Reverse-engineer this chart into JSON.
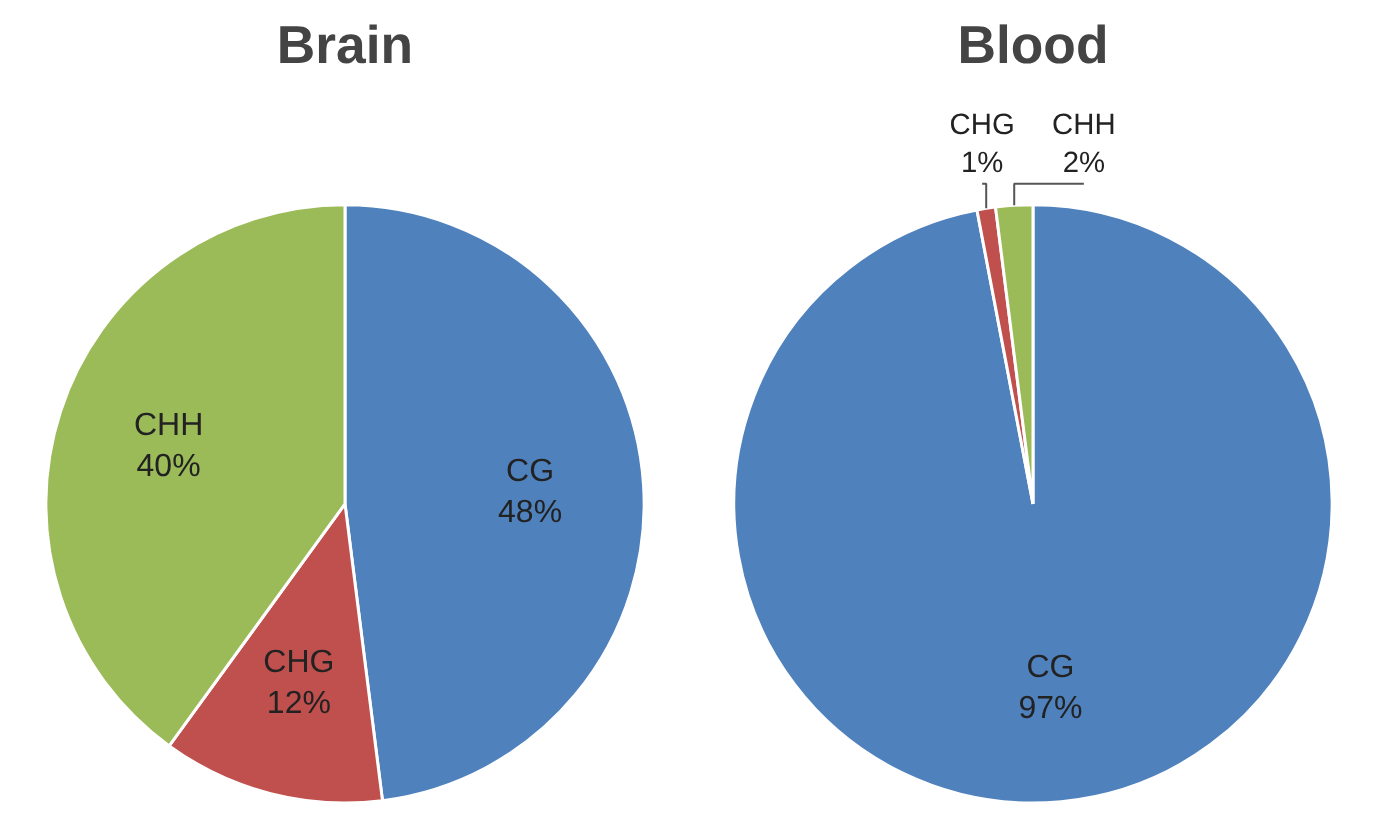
{
  "chart_data": [
    {
      "type": "pie",
      "title": "Brain",
      "categories": [
        "CG",
        "CHG",
        "CHH"
      ],
      "values": [
        48,
        12,
        40
      ],
      "colors": [
        "#4f81bd",
        "#c0504d",
        "#9bbb59"
      ],
      "value_labels": [
        "48%",
        "12%",
        "40%"
      ]
    },
    {
      "type": "pie",
      "title": "Blood",
      "categories": [
        "CG",
        "CHG",
        "CHH"
      ],
      "values": [
        97,
        1,
        2
      ],
      "colors": [
        "#4f81bd",
        "#c0504d",
        "#9bbb59"
      ],
      "value_labels": [
        "97%",
        "1%",
        "2%"
      ]
    }
  ]
}
